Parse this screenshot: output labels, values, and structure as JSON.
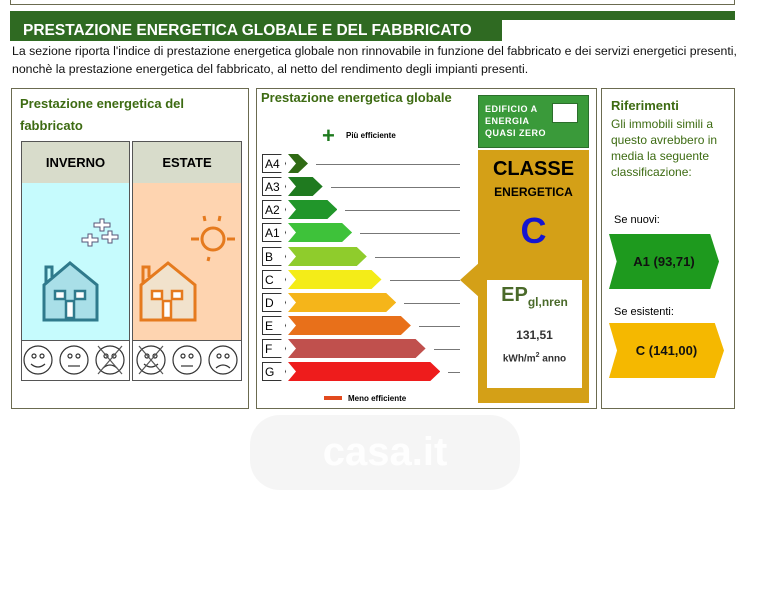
{
  "section": {
    "title": "PRESTAZIONE ENERGETICA GLOBALE E DEL FABBRICATO",
    "description": "La sezione riporta l'indice di prestazione energetica globale non rinnovabile in funzione del fabbricato e dei servizi energetici presenti, nonchè la prestazione energetica del fabbricato, al netto del rendimento degli impianti presenti."
  },
  "fabbricato": {
    "title": "Prestazione energetica del fabbricato",
    "winter": "INVERNO",
    "summer": "ESTATE",
    "winter_rating": "sad-crossed",
    "summer_rating": "happy-crossed"
  },
  "globale": {
    "title": "Prestazione energetica globale",
    "more_efficient": "Più efficiente",
    "less_efficient": "Meno efficiente",
    "classes": [
      {
        "label": "A4",
        "color": "#2f6a14"
      },
      {
        "label": "A3",
        "color": "#1f7a1f"
      },
      {
        "label": "A2",
        "color": "#21962a"
      },
      {
        "label": "A1",
        "color": "#3ec23a"
      },
      {
        "label": "B",
        "color": "#8fcc2c"
      },
      {
        "label": "C",
        "color": "#f4ec18"
      },
      {
        "label": "D",
        "color": "#f5b51a"
      },
      {
        "label": "E",
        "color": "#e8701a"
      },
      {
        "label": "F",
        "color": "#c0504d"
      },
      {
        "label": "G",
        "color": "#ee1c1c"
      }
    ],
    "current_class": "C",
    "nzeb": "EDIFICIO A ENERGIA QUASI ZERO",
    "classe_label": "CLASSE",
    "energetica_label": "ENERGETICA",
    "ep_label": "EP",
    "ep_sub": "gl,nren",
    "ep_value": "131,51",
    "ep_unit": "kWh/m",
    "ep_unit_sup": "2",
    "ep_unit_tail": " anno"
  },
  "riferimenti": {
    "title": "Riferimenti",
    "text": "Gli immobili simili a questo avrebbero in media la seguente classificazione:",
    "new_label": "Se nuovi:",
    "new_value": "A1  (93,71)",
    "new_color": "#1e9a1e",
    "existing_label": "Se esistenti:",
    "existing_value": "C  (141,00)",
    "existing_color": "#f5b800"
  },
  "watermark": "casa.it"
}
